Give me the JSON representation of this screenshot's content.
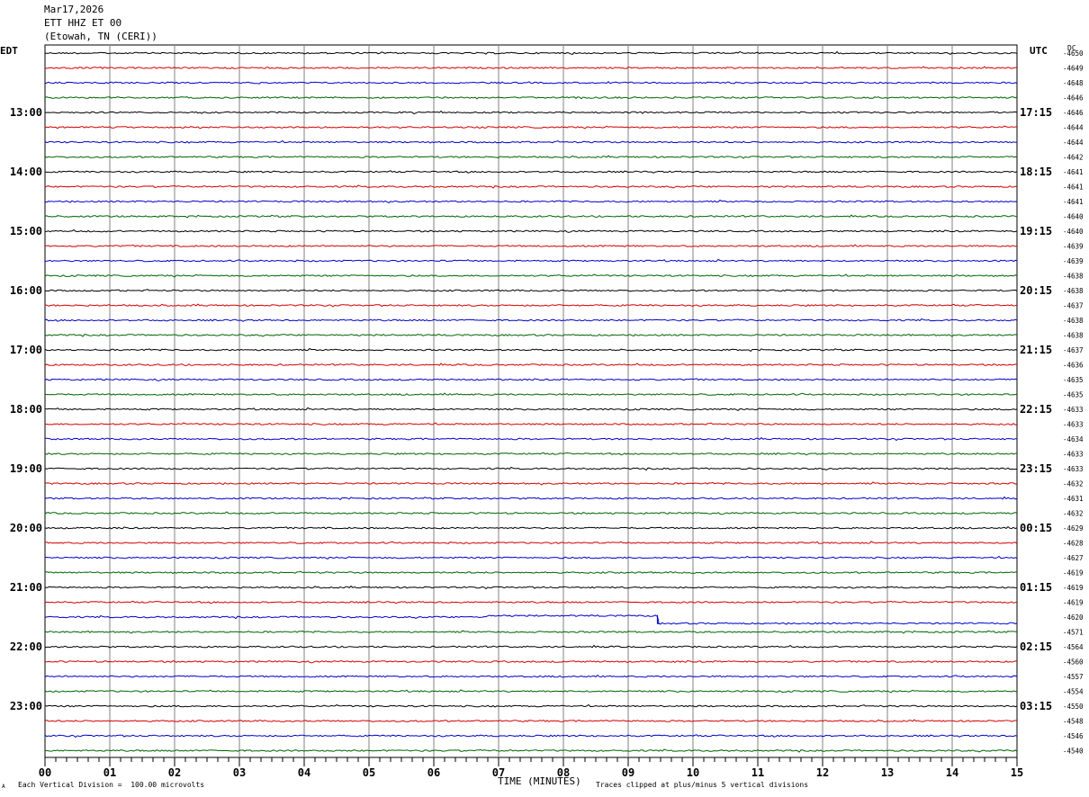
{
  "header": {
    "date": "Mar17,2026",
    "station": "ETT HHZ ET 00",
    "location": "(Etowah, TN (CERI))"
  },
  "left_axis_label": "EDT",
  "right_axis_label": "UTC",
  "dc_label": "DC",
  "footer": {
    "scale_note": "Each Vertical Division =  100.00 microvolts",
    "x_title": "TIME (MINUTES)",
    "clip_note": "Traces clipped at plus/minus 5 vertical divisions",
    "corner_mark": "A"
  },
  "chart_data": {
    "type": "line",
    "xlabel": "TIME (MINUTES)",
    "xlim": [
      0,
      15
    ],
    "x_ticks": [
      "00",
      "01",
      "02",
      "03",
      "04",
      "05",
      "06",
      "07",
      "08",
      "09",
      "10",
      "11",
      "12",
      "13",
      "14",
      "15"
    ],
    "grid": true,
    "trace_count": 48,
    "trace_colors": [
      "#000000",
      "#d40000",
      "#0000cc",
      "#006400"
    ],
    "left_time_labels": [
      {
        "trace": 4,
        "label": "13:00"
      },
      {
        "trace": 8,
        "label": "14:00"
      },
      {
        "trace": 12,
        "label": "15:00"
      },
      {
        "trace": 16,
        "label": "16:00"
      },
      {
        "trace": 20,
        "label": "17:00"
      },
      {
        "trace": 24,
        "label": "18:00"
      },
      {
        "trace": 28,
        "label": "19:00"
      },
      {
        "trace": 32,
        "label": "20:00"
      },
      {
        "trace": 36,
        "label": "21:00"
      },
      {
        "trace": 40,
        "label": "22:00"
      },
      {
        "trace": 44,
        "label": "23:00"
      }
    ],
    "right_time_labels": [
      {
        "trace": 4,
        "label": "17:15"
      },
      {
        "trace": 8,
        "label": "18:15"
      },
      {
        "trace": 12,
        "label": "19:15"
      },
      {
        "trace": 16,
        "label": "20:15"
      },
      {
        "trace": 20,
        "label": "21:15"
      },
      {
        "trace": 24,
        "label": "22:15"
      },
      {
        "trace": 28,
        "label": "23:15"
      },
      {
        "trace": 32,
        "label": "00:15"
      },
      {
        "trace": 36,
        "label": "01:15"
      },
      {
        "trace": 40,
        "label": "02:15"
      },
      {
        "trace": 44,
        "label": "03:15"
      }
    ],
    "dc_offsets": [
      "-4650",
      "-4649",
      "-4648",
      "-4646",
      "-4646",
      "-4644",
      "-4644",
      "-4642",
      "-4641",
      "-4641",
      "-4641",
      "-4640",
      "-4640",
      "-4639",
      "-4639",
      "-4638",
      "-4638",
      "-4637",
      "-4638",
      "-4638",
      "-4637",
      "-4636",
      "-4635",
      "-4635",
      "-4633",
      "-4633",
      "-4634",
      "-4633",
      "-4633",
      "-4632",
      "-4631",
      "-4632",
      "-4629",
      "-4628",
      "-4627",
      "-4619",
      "-4619",
      "-4619",
      "-4620",
      "-4571",
      "-4564",
      "-4560",
      "-4557",
      "-4554",
      "-4550",
      "-4548",
      "-4546",
      "-4540"
    ],
    "step_event": {
      "trace": 38,
      "minute": 9.45
    }
  }
}
